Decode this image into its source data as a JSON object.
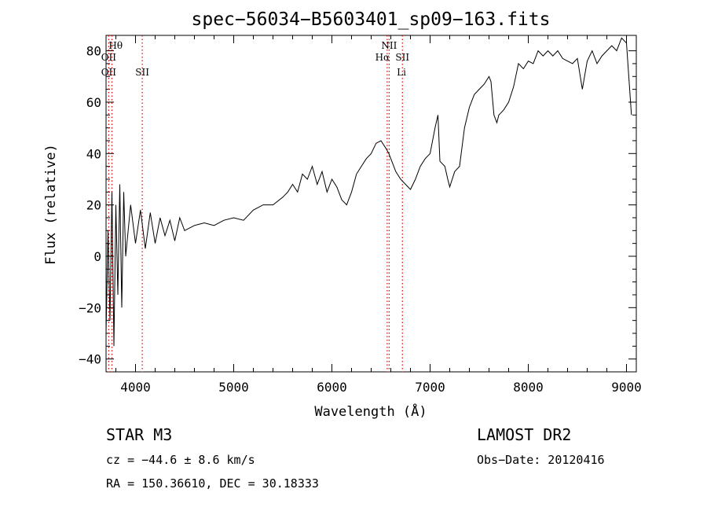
{
  "chart_data": {
    "type": "line",
    "title": "spec−56034−B5603401_sp09−163.fits",
    "xlabel": "Wavelength (Å)",
    "ylabel": "Flux (relative)",
    "xlim": [
      3700,
      9100
    ],
    "ylim": [
      -45,
      86
    ],
    "xticks": [
      4000,
      5000,
      6000,
      7000,
      8000,
      9000
    ],
    "yticks": [
      -40,
      -20,
      0,
      20,
      40,
      60,
      80
    ],
    "ytick_labels": [
      "−40",
      "−20",
      "0",
      "20",
      "40",
      "60",
      "80"
    ],
    "grid": false,
    "series": [
      {
        "x": [
          3700,
          3720,
          3740,
          3760,
          3780,
          3800,
          3820,
          3840,
          3860,
          3880,
          3900,
          3950,
          4000,
          4050,
          4100,
          4150,
          4200,
          4250,
          4300,
          4350,
          4400,
          4450,
          4500,
          4600,
          4700,
          4800,
          4900,
          5000,
          5100,
          5200,
          5300,
          5400,
          5500,
          5550,
          5600,
          5650,
          5700,
          5750,
          5800,
          5850,
          5900,
          5950,
          6000,
          6050,
          6100,
          6150,
          6200,
          6250,
          6300,
          6350,
          6400,
          6450,
          6500,
          6550,
          6580,
          6600,
          6650,
          6700,
          6750,
          6800,
          6850,
          6900,
          6950,
          7000,
          7050,
          7080,
          7100,
          7150,
          7180,
          7200,
          7250,
          7300,
          7350,
          7400,
          7450,
          7500,
          7550,
          7600,
          7620,
          7650,
          7680,
          7700,
          7750,
          7800,
          7850,
          7900,
          7950,
          8000,
          8050,
          8100,
          8150,
          8200,
          8250,
          8300,
          8350,
          8400,
          8450,
          8500,
          8550,
          8600,
          8650,
          8700,
          8750,
          8800,
          8850,
          8900,
          8950,
          9000,
          9050
        ],
        "y": [
          -30,
          10,
          -25,
          25,
          -35,
          20,
          -15,
          28,
          -20,
          25,
          0,
          20,
          5,
          18,
          3,
          17,
          5,
          15,
          8,
          14,
          6,
          15,
          10,
          12,
          13,
          12,
          14,
          15,
          14,
          18,
          20,
          20,
          23,
          25,
          28,
          25,
          32,
          30,
          35,
          28,
          33,
          25,
          30,
          27,
          22,
          20,
          25,
          32,
          35,
          38,
          40,
          44,
          45,
          42,
          40,
          38,
          33,
          30,
          28,
          26,
          30,
          35,
          38,
          40,
          50,
          55,
          37,
          35,
          30,
          27,
          33,
          35,
          50,
          58,
          63,
          65,
          67,
          70,
          68,
          55,
          52,
          55,
          57,
          60,
          66,
          75,
          73,
          76,
          75,
          80,
          78,
          80,
          78,
          80,
          77,
          76,
          75,
          77,
          65,
          76,
          80,
          75,
          78,
          80,
          82,
          80,
          85,
          83,
          55
        ]
      }
    ],
    "annotations": [
      {
        "label": "Hθ",
        "x": 3798,
        "row": 1
      },
      {
        "label": "OII",
        "x": 3727,
        "row": 2
      },
      {
        "label": "OII",
        "x": 3727,
        "row": 3
      },
      {
        "label": "SII",
        "x": 4069,
        "row": 3
      },
      {
        "label": "NII",
        "x": 6583,
        "row": 1
      },
      {
        "label": "Hα",
        "x": 6563,
        "row": 2
      },
      {
        "label": "SII",
        "x": 6718,
        "row": 2
      },
      {
        "label": "Li",
        "x": 6708,
        "row": 3
      }
    ],
    "line_markers": [
      3727,
      3760,
      4069,
      6563,
      6583,
      6718
    ],
    "line_marker_color": "#dd0000"
  },
  "info": {
    "object": "STAR    M3",
    "survey": "LAMOST DR2",
    "cz": "cz = −44.6 ± 8.6 km/s",
    "obs_date": "Obs−Date: 20120416",
    "coords": "RA = 150.36610, DEC =  30.18333"
  }
}
